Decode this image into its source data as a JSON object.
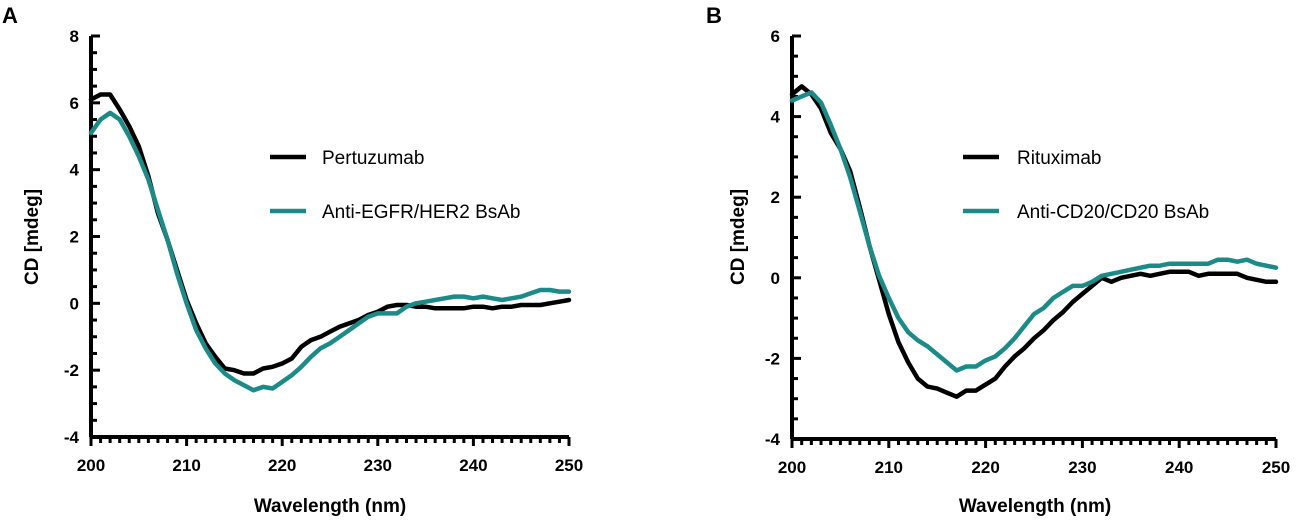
{
  "chart_data": [
    {
      "panel": "A",
      "type": "line",
      "title": "",
      "xlabel": "Wavelength (nm)",
      "ylabel": "CD [mdeg]",
      "xlim": [
        200,
        250
      ],
      "ylim": [
        -4,
        8
      ],
      "xticks": [
        200,
        210,
        220,
        230,
        240,
        250
      ],
      "yticks": [
        -4,
        -2,
        0,
        2,
        4,
        6,
        8
      ],
      "legend_position": "center-right",
      "series": [
        {
          "name": "Pertuzumab",
          "color": "#000000",
          "x": [
            200,
            201,
            202,
            203,
            204,
            205,
            206,
            207,
            208,
            209,
            210,
            211,
            212,
            213,
            214,
            215,
            216,
            217,
            218,
            219,
            220,
            221,
            222,
            223,
            224,
            225,
            226,
            227,
            228,
            229,
            230,
            231,
            232,
            233,
            234,
            235,
            236,
            237,
            238,
            239,
            240,
            241,
            242,
            243,
            244,
            245,
            246,
            247,
            248,
            249,
            250
          ],
          "y": [
            6.1,
            6.25,
            6.25,
            5.8,
            5.3,
            4.7,
            3.8,
            2.7,
            1.9,
            1.0,
            0.1,
            -0.6,
            -1.2,
            -1.6,
            -1.95,
            -2.0,
            -2.1,
            -2.1,
            -1.95,
            -1.9,
            -1.8,
            -1.65,
            -1.3,
            -1.1,
            -1.0,
            -0.85,
            -0.7,
            -0.6,
            -0.5,
            -0.35,
            -0.25,
            -0.1,
            -0.05,
            -0.05,
            -0.1,
            -0.1,
            -0.15,
            -0.15,
            -0.15,
            -0.15,
            -0.1,
            -0.1,
            -0.15,
            -0.1,
            -0.1,
            -0.05,
            -0.05,
            -0.05,
            0.0,
            0.05,
            0.1
          ]
        },
        {
          "name": "Anti-EGFR/HER2 BsAb",
          "color": "#1e8a88",
          "x": [
            200,
            201,
            202,
            203,
            204,
            205,
            206,
            207,
            208,
            209,
            210,
            211,
            212,
            213,
            214,
            215,
            216,
            217,
            218,
            219,
            220,
            221,
            222,
            223,
            224,
            225,
            226,
            227,
            228,
            229,
            230,
            231,
            232,
            233,
            234,
            235,
            236,
            237,
            238,
            239,
            240,
            241,
            242,
            243,
            244,
            245,
            246,
            247,
            248,
            249,
            250
          ],
          "y": [
            5.1,
            5.5,
            5.7,
            5.5,
            5.0,
            4.4,
            3.7,
            2.8,
            1.9,
            0.9,
            0.0,
            -0.8,
            -1.35,
            -1.8,
            -2.1,
            -2.3,
            -2.45,
            -2.6,
            -2.5,
            -2.55,
            -2.35,
            -2.15,
            -1.9,
            -1.6,
            -1.35,
            -1.2,
            -1.0,
            -0.8,
            -0.6,
            -0.4,
            -0.3,
            -0.3,
            -0.3,
            -0.1,
            0.0,
            0.05,
            0.1,
            0.15,
            0.2,
            0.2,
            0.15,
            0.2,
            0.15,
            0.1,
            0.15,
            0.2,
            0.3,
            0.4,
            0.4,
            0.35,
            0.35
          ]
        }
      ]
    },
    {
      "panel": "B",
      "type": "line",
      "title": "",
      "xlabel": "Wavelength (nm)",
      "ylabel": "CD [mdeg]",
      "xlim": [
        200,
        250
      ],
      "ylim": [
        -4,
        6
      ],
      "xticks": [
        200,
        210,
        220,
        230,
        240,
        250
      ],
      "yticks": [
        -4,
        -2,
        0,
        2,
        4,
        6
      ],
      "legend_position": "center-right",
      "series": [
        {
          "name": "Rituximab",
          "color": "#000000",
          "x": [
            200,
            201,
            202,
            203,
            204,
            205,
            206,
            207,
            208,
            209,
            210,
            211,
            212,
            213,
            214,
            215,
            216,
            217,
            218,
            219,
            220,
            221,
            222,
            223,
            224,
            225,
            226,
            227,
            228,
            229,
            230,
            231,
            232,
            233,
            234,
            235,
            236,
            237,
            238,
            239,
            240,
            241,
            242,
            243,
            244,
            245,
            246,
            247,
            248,
            249,
            250
          ],
          "y": [
            4.55,
            4.75,
            4.55,
            4.2,
            3.6,
            3.2,
            2.65,
            1.75,
            0.8,
            -0.05,
            -0.9,
            -1.6,
            -2.1,
            -2.5,
            -2.7,
            -2.75,
            -2.85,
            -2.95,
            -2.8,
            -2.8,
            -2.65,
            -2.5,
            -2.2,
            -1.95,
            -1.75,
            -1.5,
            -1.3,
            -1.05,
            -0.85,
            -0.6,
            -0.4,
            -0.2,
            0.0,
            -0.1,
            0.0,
            0.05,
            0.1,
            0.05,
            0.1,
            0.15,
            0.15,
            0.15,
            0.05,
            0.1,
            0.1,
            0.1,
            0.1,
            0.0,
            -0.05,
            -0.1,
            -0.1
          ]
        },
        {
          "name": "Anti-CD20/CD20 BsAb",
          "color": "#1e8a88",
          "x": [
            200,
            201,
            202,
            203,
            204,
            205,
            206,
            207,
            208,
            209,
            210,
            211,
            212,
            213,
            214,
            215,
            216,
            217,
            218,
            219,
            220,
            221,
            222,
            223,
            224,
            225,
            226,
            227,
            228,
            229,
            230,
            231,
            232,
            233,
            234,
            235,
            236,
            237,
            238,
            239,
            240,
            241,
            242,
            243,
            244,
            245,
            246,
            247,
            248,
            249,
            250
          ],
          "y": [
            4.4,
            4.5,
            4.6,
            4.35,
            3.8,
            3.2,
            2.5,
            1.65,
            0.8,
            0.05,
            -0.5,
            -1.0,
            -1.35,
            -1.55,
            -1.7,
            -1.9,
            -2.1,
            -2.3,
            -2.2,
            -2.2,
            -2.05,
            -1.95,
            -1.75,
            -1.5,
            -1.2,
            -0.9,
            -0.75,
            -0.5,
            -0.35,
            -0.2,
            -0.2,
            -0.1,
            0.05,
            0.1,
            0.15,
            0.2,
            0.25,
            0.3,
            0.3,
            0.35,
            0.35,
            0.35,
            0.35,
            0.35,
            0.45,
            0.45,
            0.4,
            0.45,
            0.35,
            0.3,
            0.25
          ]
        }
      ]
    }
  ]
}
